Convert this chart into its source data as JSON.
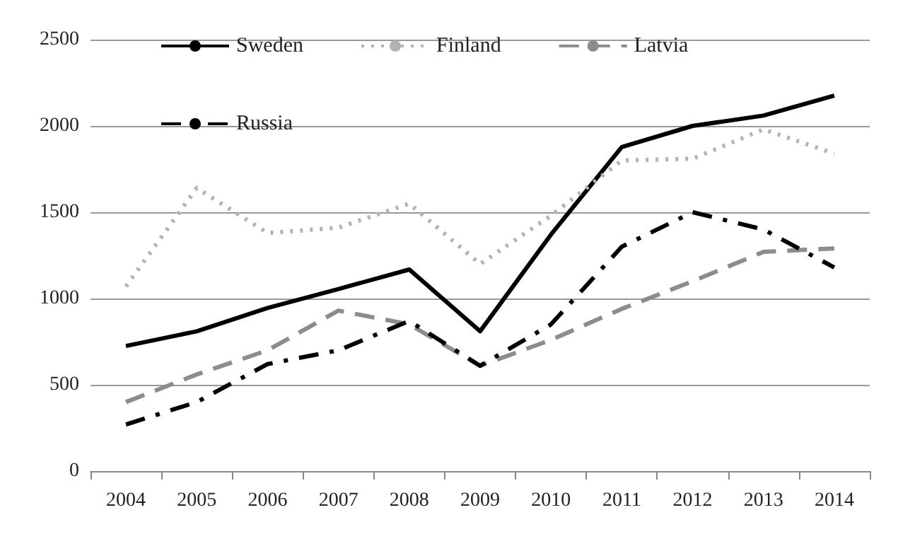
{
  "chart_data": {
    "type": "line",
    "categories": [
      "2004",
      "2005",
      "2006",
      "2007",
      "2008",
      "2009",
      "2010",
      "2011",
      "2012",
      "2013",
      "2014"
    ],
    "series": [
      {
        "name": "Sweden",
        "color": "#000000",
        "line_style": "solid",
        "values": [
          725,
          810,
          945,
          1055,
          1168,
          810,
          1370,
          1878,
          2000,
          2060,
          2176
        ]
      },
      {
        "name": "Finland",
        "color": "#b3b3b3",
        "line_style": "dotted",
        "values": [
          1070,
          1640,
          1380,
          1410,
          1550,
          1200,
          1480,
          1800,
          1810,
          1980,
          1840
        ]
      },
      {
        "name": "Latvia",
        "color": "#8c8c8c",
        "line_style": "dashed",
        "values": [
          400,
          560,
          700,
          930,
          850,
          610,
          760,
          940,
          1100,
          1270,
          1290
        ]
      },
      {
        "name": "Russia",
        "color": "#000000",
        "line_style": "dashdot",
        "values": [
          270,
          400,
          620,
          700,
          870,
          610,
          850,
          1300,
          1500,
          1400,
          1180
        ]
      }
    ],
    "ylim": [
      0,
      2500
    ],
    "yticks": [
      0,
      500,
      1000,
      1500,
      2000,
      2500
    ],
    "grid": "y",
    "legend": "top left",
    "marker": "none"
  }
}
